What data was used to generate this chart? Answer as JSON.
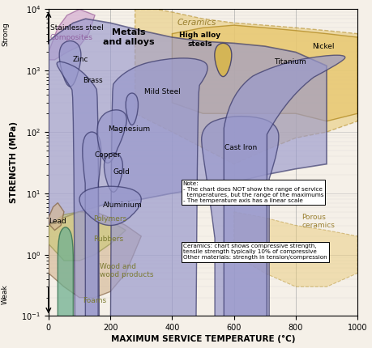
{
  "xlabel": "MAXIMUM SERVICE TEMPERATURE (°C)",
  "ylabel": "STRENGTH (MPa)",
  "xlim": [
    0,
    1000
  ],
  "ylim_log": [
    0.1,
    10000
  ],
  "bg_color": "#f5f0e8",
  "grid_color": "#aaaaaa",
  "colors": {
    "metals_fill": "#9999cc",
    "metals_edge": "#333366",
    "ceramics_fill": "#e8c870",
    "ceramics_edge": "#b08820",
    "composites_fill": "#cc99cc",
    "composites_edge": "#884488",
    "polymers_fill": "#c8c870",
    "polymers_edge": "#888840",
    "wood_fill": "#d4b896",
    "wood_edge": "#806040",
    "green_fill": "#70b090",
    "green_edge": "#2a6a4a"
  },
  "note_text": "Note:\n- The chart does NOT show the range of service\n  temperatures, but the range of the maximums\n- The temperature axis has a linear scale",
  "ceramics_note": "Ceramics: chart shows compressive strength,\ntensile strength typically 10% of compressive\nOther materials: strength in tension/compression"
}
